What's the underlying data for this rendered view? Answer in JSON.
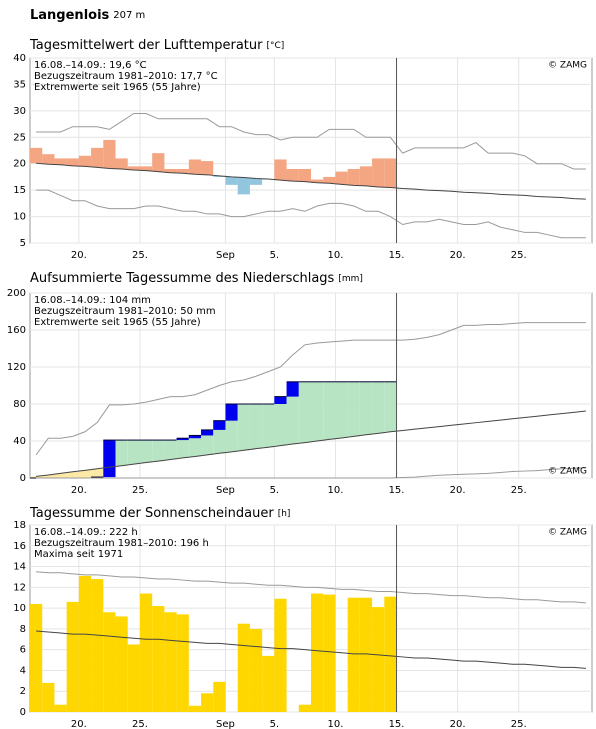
{
  "header": {
    "station": "Langenlois",
    "elevation": "207 m"
  },
  "chart_data": [
    {
      "type": "bar",
      "bar_base": "reference",
      "title": "Tagesmittelwert der Lufttemperatur",
      "unit": "[°C]",
      "notes": [
        "16.08.–14.09.: 19,6 °C",
        "Bezugszeitraum 1981–2010: 17,7 °C",
        "Extremwerte seit 1965 (55 Jahre)"
      ],
      "copyright": "© ZAMG",
      "categories": [
        null,
        null,
        null,
        null,
        "20.",
        null,
        null,
        null,
        null,
        "25.",
        null,
        null,
        null,
        null,
        null,
        null,
        "Sep",
        null,
        null,
        null,
        "5.",
        null,
        null,
        null,
        null,
        "10.",
        null,
        null,
        null,
        null,
        "15.",
        null,
        null,
        null,
        null,
        "20.",
        null,
        null,
        null,
        null,
        "25.",
        null,
        null,
        null,
        null,
        null
      ],
      "values": [
        23,
        21.8,
        21,
        21,
        21.5,
        23,
        24.5,
        21,
        19.5,
        19.5,
        22,
        19,
        19,
        20.8,
        20.5,
        17.5,
        16,
        14.2,
        16,
        17,
        20.8,
        19,
        19,
        17,
        17.5,
        18.5,
        19,
        19.5,
        21,
        21,
        null,
        null,
        null,
        null,
        null,
        null,
        null,
        null,
        null,
        null,
        null,
        null,
        null,
        null,
        null,
        null
      ],
      "reference": [
        20.1,
        19.9,
        19.8,
        19.6,
        19.5,
        19.3,
        19.1,
        19.0,
        18.8,
        18.7,
        18.5,
        18.3,
        18.2,
        18.0,
        17.9,
        17.7,
        17.5,
        17.4,
        17.2,
        17.1,
        16.9,
        16.7,
        16.6,
        16.4,
        16.3,
        16.1,
        15.9,
        15.8,
        15.6,
        15.5,
        15.3,
        15.2,
        15.0,
        14.9,
        14.8,
        14.6,
        14.5,
        14.4,
        14.2,
        14.1,
        14.0,
        13.8,
        13.7,
        13.6,
        13.4,
        13.3
      ],
      "extreme_high": [
        26,
        26,
        26,
        27,
        27,
        27,
        26.5,
        28,
        29.5,
        29.5,
        28.5,
        28.5,
        28.5,
        28.5,
        28.5,
        27,
        27,
        26,
        25.5,
        25.5,
        24.5,
        25,
        25,
        25,
        26.5,
        26.5,
        26.5,
        25,
        25,
        25,
        22,
        23,
        23,
        23,
        23,
        23,
        24,
        22,
        22,
        22,
        21.5,
        20,
        20,
        20,
        19,
        19
      ],
      "extreme_low": [
        15,
        15,
        14,
        13,
        13,
        12,
        11.5,
        11.5,
        11.5,
        12,
        12,
        11.5,
        11,
        11,
        10.5,
        10.5,
        10,
        10,
        10.5,
        11,
        11,
        11.5,
        11,
        12,
        12.5,
        12.5,
        12,
        11,
        11,
        10,
        8.5,
        9,
        9,
        9.5,
        9,
        8.5,
        8.5,
        9,
        8,
        7.5,
        7,
        7,
        6.5,
        6,
        6,
        6
      ],
      "colors": {
        "above": "#f4a582",
        "below": "#92c5de"
      },
      "line_colors": {
        "reference": "#444444",
        "extreme_high": "#999999",
        "extreme_low": "#999999"
      },
      "ylim": [
        5,
        40
      ],
      "yticks": [
        5,
        10,
        15,
        20,
        25,
        30,
        35,
        40
      ],
      "grid": true
    },
    {
      "type": "area",
      "title": "Aufsummierte Tagessumme des Niederschlags",
      "unit": "[mm]",
      "notes": [
        "16.08.–14.09.: 104 mm",
        "Bezugszeitraum 1981–2010: 50 mm",
        "Extremwerte seit 1965 (55 Jahre)"
      ],
      "copyright": "© ZAMG",
      "categories": [
        null,
        null,
        null,
        null,
        "20.",
        null,
        null,
        null,
        null,
        "25.",
        null,
        null,
        null,
        null,
        null,
        null,
        "Sep",
        null,
        null,
        null,
        "5.",
        null,
        null,
        null,
        null,
        "10.",
        null,
        null,
        null,
        null,
        "15.",
        null,
        null,
        null,
        null,
        "20.",
        null,
        null,
        null,
        null,
        "25.",
        null,
        null,
        null,
        null,
        null
      ],
      "values": [
        0,
        0,
        0,
        0,
        0,
        1,
        41,
        41,
        41,
        41,
        41,
        41,
        43,
        46,
        52,
        62,
        80,
        80,
        80,
        80,
        88,
        104,
        104,
        104,
        104,
        104,
        104,
        104,
        104,
        104,
        null,
        null,
        null,
        null,
        null,
        null,
        null,
        null,
        null,
        null,
        null,
        null,
        null,
        null,
        null,
        null
      ],
      "reference": [
        1.7,
        3.3,
        5,
        6.7,
        8.3,
        10,
        11.7,
        13.3,
        15,
        16.7,
        18.3,
        20,
        21.7,
        23.3,
        25,
        26.7,
        28.3,
        30,
        31.7,
        33.3,
        35,
        36.7,
        38.3,
        40,
        41.7,
        43.3,
        45,
        46.7,
        48.3,
        50,
        51.4,
        52.8,
        54.2,
        55.6,
        57,
        58.4,
        59.8,
        61.2,
        62.6,
        64,
        65.4,
        66.8,
        68.2,
        69.6,
        71,
        72.4
      ],
      "extreme_high": [
        25,
        43,
        43,
        45,
        50,
        60,
        79,
        79,
        80,
        82,
        85,
        88,
        88,
        90,
        95,
        100,
        104,
        106,
        110,
        115,
        120,
        133,
        144,
        146,
        147,
        148,
        149,
        149,
        149,
        149,
        149,
        150,
        152,
        155,
        160,
        165,
        165,
        166,
        166,
        167,
        168,
        168,
        168,
        168,
        168,
        168
      ],
      "extreme_low": [
        0,
        0,
        0,
        0,
        0,
        0,
        0,
        0,
        0,
        0,
        0,
        0,
        0,
        0,
        0,
        0,
        0,
        0,
        0,
        0,
        0,
        0,
        0,
        0,
        0,
        0,
        0,
        0,
        0,
        0,
        0.5,
        1,
        2,
        3,
        3.5,
        4,
        4.5,
        5,
        6,
        7,
        7.5,
        8,
        9,
        10,
        10.5,
        11
      ],
      "colors": {
        "above": "#b7e4c2",
        "below": "#fce9a6",
        "increment": "#0000ee"
      },
      "line_colors": {
        "reference": "#444444",
        "extreme_high": "#999999",
        "extreme_low": "#999999"
      },
      "ylim": [
        0,
        200
      ],
      "yticks": [
        0,
        40,
        80,
        120,
        160,
        200
      ],
      "grid": true
    },
    {
      "type": "bar",
      "title": "Tagessumme der Sonnenscheindauer",
      "unit": "[h]",
      "notes": [
        "16.08.–14.09.: 222 h",
        "Bezugszeitraum 1981–2010: 196 h",
        "Maxima seit 1971"
      ],
      "copyright": "© ZAMG",
      "categories": [
        null,
        null,
        null,
        null,
        "20.",
        null,
        null,
        null,
        null,
        "25.",
        null,
        null,
        null,
        null,
        null,
        null,
        "Sep",
        null,
        null,
        null,
        "5.",
        null,
        null,
        null,
        null,
        "10.",
        null,
        null,
        null,
        null,
        "15.",
        null,
        null,
        null,
        null,
        "20.",
        null,
        null,
        null,
        null,
        "25.",
        null,
        null,
        null,
        null,
        null
      ],
      "values": [
        10.4,
        2.8,
        0.7,
        10.6,
        13.1,
        12.8,
        9.6,
        9.2,
        6.5,
        11.4,
        10.2,
        9.6,
        9.4,
        0.6,
        1.8,
        2.9,
        0,
        8.5,
        8.0,
        5.4,
        10.9,
        0,
        0.7,
        11.4,
        11.3,
        0,
        11.0,
        11.0,
        10.1,
        11.1,
        null,
        null,
        null,
        null,
        null,
        null,
        null,
        null,
        null,
        null,
        null,
        null,
        null,
        null,
        null,
        null
      ],
      "reference": [
        7.8,
        7.7,
        7.6,
        7.5,
        7.5,
        7.4,
        7.3,
        7.2,
        7.1,
        7.0,
        7.0,
        6.9,
        6.8,
        6.7,
        6.6,
        6.6,
        6.5,
        6.4,
        6.3,
        6.2,
        6.1,
        6.1,
        6.0,
        5.9,
        5.8,
        5.7,
        5.6,
        5.6,
        5.5,
        5.4,
        5.3,
        5.2,
        5.2,
        5.1,
        5.0,
        4.9,
        4.9,
        4.8,
        4.7,
        4.6,
        4.6,
        4.5,
        4.4,
        4.3,
        4.3,
        4.2
      ],
      "extreme_high": [
        13.5,
        13.4,
        13.4,
        13.3,
        13.2,
        13.2,
        13.1,
        13.0,
        13.0,
        12.9,
        12.8,
        12.8,
        12.7,
        12.6,
        12.6,
        12.5,
        12.4,
        12.4,
        12.3,
        12.2,
        12.2,
        12.1,
        12.0,
        12.0,
        11.9,
        11.8,
        11.8,
        11.7,
        11.6,
        11.6,
        11.5,
        11.4,
        11.4,
        11.3,
        11.2,
        11.2,
        11.1,
        11.0,
        11.0,
        10.9,
        10.8,
        10.8,
        10.7,
        10.6,
        10.6,
        10.5
      ],
      "color": "#ffd700",
      "line_colors": {
        "reference": "#444444",
        "extreme_high": "#999999"
      },
      "ylim": [
        0,
        18
      ],
      "yticks": [
        0,
        2,
        4,
        6,
        8,
        10,
        12,
        14,
        16,
        18
      ],
      "grid": true
    }
  ]
}
